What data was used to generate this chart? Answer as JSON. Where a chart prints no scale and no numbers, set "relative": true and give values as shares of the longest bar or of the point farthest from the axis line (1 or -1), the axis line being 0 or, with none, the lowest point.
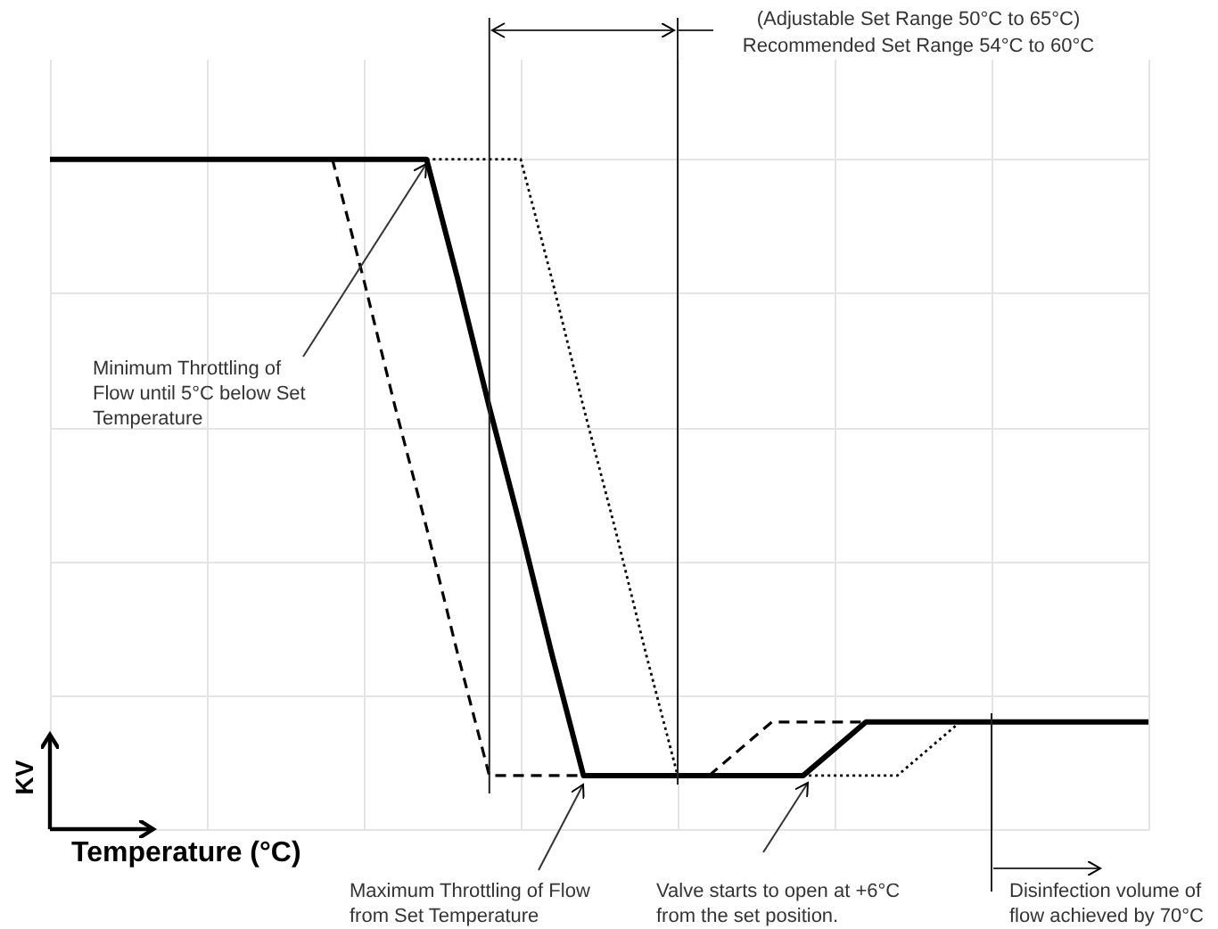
{
  "chart_data": {
    "type": "line",
    "relative": true,
    "xlabel": "Temperature (°C)",
    "ylabel": "KV",
    "grid": true,
    "categories": [
      null,
      null,
      null,
      null,
      null,
      null,
      null,
      null,
      null,
      null,
      null,
      null,
      null,
      null,
      null,
      null,
      null,
      null,
      null,
      null,
      null,
      null,
      null,
      null,
      null,
      null,
      null,
      null,
      null,
      null,
      null,
      null,
      null,
      null,
      null,
      null
    ],
    "series": [
      {
        "color": "#000000",
        "line_style": "solid",
        "values": [
          1,
          1,
          1,
          1,
          1,
          1,
          1,
          1,
          1,
          1,
          1,
          1,
          1,
          0.82,
          0.63,
          0.45,
          0.26,
          0.08,
          0.08,
          0.08,
          0.08,
          0.08,
          0.08,
          0.08,
          0.08,
          0.12,
          0.16,
          0.16,
          0.16,
          0.16,
          0.16,
          0.16,
          0.16,
          0.16,
          0.16,
          0.16
        ]
      },
      {
        "color": "#000000",
        "line_style": "dashed",
        "values": [
          null,
          null,
          null,
          null,
          null,
          null,
          null,
          null,
          null,
          1,
          0.82,
          0.63,
          0.45,
          0.26,
          0.08,
          0.08,
          0.08,
          0.08,
          0.08,
          0.08,
          0.08,
          0.08,
          0.12,
          0.16,
          0.16,
          0.16,
          0.16,
          null,
          null,
          null,
          null,
          null,
          null,
          null,
          null,
          null
        ]
      },
      {
        "color": "#000000",
        "line_style": "dotted",
        "values": [
          null,
          null,
          null,
          null,
          null,
          null,
          null,
          null,
          null,
          null,
          null,
          null,
          1,
          1,
          1,
          1,
          0.82,
          0.63,
          0.45,
          0.26,
          0.08,
          0.08,
          0.08,
          0.08,
          0.08,
          0.08,
          0.08,
          0.08,
          0.12,
          0.16,
          null,
          null,
          null,
          null,
          null,
          null
        ]
      }
    ],
    "annotations": [
      "(Adjustable Set Range 50°C to 65°C)",
      "Recommended Set Range 54°C to 60°C",
      "Minimum Throttling of Flow until 5°C below Set Temperature",
      "Maximum Throttling of Flow from Set Temperature",
      "Valve starts to open at +6°C from the set position.",
      "Disinfection volume of flow achieved by 70°C"
    ]
  }
}
